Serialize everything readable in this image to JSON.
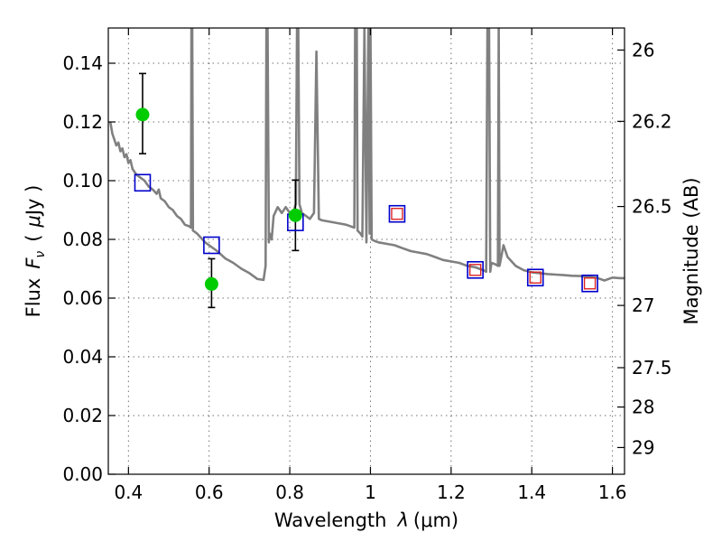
{
  "chart_data": {
    "type": "scatter",
    "xlabel_text": "Wavelength",
    "xlabel_symbol": "λ",
    "xlabel_unit": "(μm)",
    "ylabel_text": "Flux",
    "ylabel_symbol": "F",
    "ylabel_subscript": "ν",
    "ylabel_unit_open": "(",
    "ylabel_unit_mu": "μ",
    "ylabel_unit_rest": "Jy )",
    "y2label": "Magnitude (AB)",
    "xlim": [
      0.35,
      1.63
    ],
    "ylim": [
      0.0,
      0.152
    ],
    "grid": true,
    "x_ticks": [
      0.4,
      0.6,
      0.8,
      1.0,
      1.2,
      1.4,
      1.6
    ],
    "x_tick_labels": [
      "0.4",
      "0.6",
      "0.8",
      "1",
      "1.2",
      "1.4",
      "1.6"
    ],
    "y_ticks": [
      0.0,
      0.02,
      0.04,
      0.06,
      0.08,
      0.1,
      0.12,
      0.14
    ],
    "y_tick_labels": [
      "0.00",
      "0.02",
      "0.04",
      "0.06",
      "0.08",
      "0.10",
      "0.12",
      "0.14"
    ],
    "y2_ticks": [
      {
        "label": "26",
        "flux": 0.1445
      },
      {
        "label": "26.2",
        "flux": 0.1202
      },
      {
        "label": "26.5",
        "flux": 0.0912
      },
      {
        "label": "27",
        "flux": 0.0575
      },
      {
        "label": "27.5",
        "flux": 0.0363
      },
      {
        "label": "28",
        "flux": 0.0229
      },
      {
        "label": "29",
        "flux": 0.0091
      }
    ],
    "series": [
      {
        "kind": "line",
        "color": "#808080",
        "points": [
          [
            0.355,
            0.12
          ],
          [
            0.36,
            0.116
          ],
          [
            0.365,
            0.114
          ],
          [
            0.37,
            0.112
          ],
          [
            0.375,
            0.113
          ],
          [
            0.38,
            0.11
          ],
          [
            0.385,
            0.111
          ],
          [
            0.39,
            0.108
          ],
          [
            0.395,
            0.109
          ],
          [
            0.4,
            0.106
          ],
          [
            0.405,
            0.107
          ],
          [
            0.41,
            0.104
          ],
          [
            0.42,
            0.102
          ],
          [
            0.43,
            0.101
          ],
          [
            0.44,
            0.1
          ],
          [
            0.45,
            0.098
          ],
          [
            0.46,
            0.097
          ],
          [
            0.47,
            0.0955
          ],
          [
            0.475,
            0.097
          ],
          [
            0.48,
            0.094
          ],
          [
            0.49,
            0.093
          ],
          [
            0.5,
            0.091
          ],
          [
            0.51,
            0.09
          ],
          [
            0.52,
            0.088
          ],
          [
            0.53,
            0.087
          ],
          [
            0.54,
            0.085
          ],
          [
            0.55,
            0.0845
          ],
          [
            0.555,
            0.084
          ],
          [
            0.556,
            0.16
          ],
          [
            0.558,
            0.16
          ],
          [
            0.56,
            0.083
          ],
          [
            0.57,
            0.082
          ],
          [
            0.58,
            0.0805
          ],
          [
            0.59,
            0.079
          ],
          [
            0.6,
            0.078
          ],
          [
            0.62,
            0.076
          ],
          [
            0.64,
            0.0735
          ],
          [
            0.66,
            0.072
          ],
          [
            0.68,
            0.07
          ],
          [
            0.7,
            0.0685
          ],
          [
            0.72,
            0.0665
          ],
          [
            0.735,
            0.0662
          ],
          [
            0.74,
            0.071
          ],
          [
            0.742,
            0.16
          ],
          [
            0.745,
            0.16
          ],
          [
            0.748,
            0.079
          ],
          [
            0.75,
            0.082
          ],
          [
            0.755,
            0.08
          ],
          [
            0.76,
            0.088
          ],
          [
            0.77,
            0.091
          ],
          [
            0.78,
            0.089
          ],
          [
            0.79,
            0.091
          ],
          [
            0.8,
            0.089
          ],
          [
            0.81,
            0.09
          ],
          [
            0.815,
            0.092
          ],
          [
            0.818,
            0.16
          ],
          [
            0.821,
            0.16
          ],
          [
            0.824,
            0.092
          ],
          [
            0.83,
            0.089
          ],
          [
            0.84,
            0.088
          ],
          [
            0.85,
            0.087
          ],
          [
            0.86,
            0.089
          ],
          [
            0.866,
            0.144
          ],
          [
            0.872,
            0.087
          ],
          [
            0.88,
            0.0865
          ],
          [
            0.9,
            0.086
          ],
          [
            0.92,
            0.0855
          ],
          [
            0.94,
            0.085
          ],
          [
            0.96,
            0.084
          ],
          [
            0.962,
            0.16
          ],
          [
            0.966,
            0.16
          ],
          [
            0.968,
            0.083
          ],
          [
            0.975,
            0.082
          ],
          [
            0.98,
            0.081
          ],
          [
            0.985,
            0.16
          ],
          [
            0.99,
            0.079
          ],
          [
            0.995,
            0.16
          ],
          [
            0.998,
            0.082
          ],
          [
            1.0,
            0.16
          ],
          [
            1.003,
            0.08
          ],
          [
            1.01,
            0.0795
          ],
          [
            1.02,
            0.079
          ],
          [
            1.04,
            0.0785
          ],
          [
            1.06,
            0.078
          ],
          [
            1.08,
            0.077
          ],
          [
            1.1,
            0.076
          ],
          [
            1.12,
            0.0755
          ],
          [
            1.14,
            0.075
          ],
          [
            1.16,
            0.074
          ],
          [
            1.18,
            0.073
          ],
          [
            1.2,
            0.0725
          ],
          [
            1.22,
            0.072
          ],
          [
            1.24,
            0.071
          ],
          [
            1.26,
            0.0705
          ],
          [
            1.27,
            0.07
          ],
          [
            1.28,
            0.0695
          ],
          [
            1.287,
            0.069
          ],
          [
            1.29,
            0.16
          ],
          [
            1.294,
            0.16
          ],
          [
            1.297,
            0.069
          ],
          [
            1.3,
            0.072
          ],
          [
            1.31,
            0.0715
          ],
          [
            1.316,
            0.071
          ],
          [
            1.318,
            0.16
          ],
          [
            1.32,
            0.071
          ],
          [
            1.33,
            0.078
          ],
          [
            1.34,
            0.074
          ],
          [
            1.36,
            0.071
          ],
          [
            1.38,
            0.0695
          ],
          [
            1.4,
            0.0688
          ],
          [
            1.42,
            0.0685
          ],
          [
            1.44,
            0.0682
          ],
          [
            1.46,
            0.068
          ],
          [
            1.48,
            0.0678
          ],
          [
            1.5,
            0.0676
          ],
          [
            1.52,
            0.0675
          ],
          [
            1.54,
            0.0672
          ],
          [
            1.56,
            0.067
          ],
          [
            1.58,
            0.066
          ],
          [
            1.6,
            0.067
          ],
          [
            1.62,
            0.0668
          ],
          [
            1.63,
            0.0668
          ]
        ]
      },
      {
        "kind": "points_with_errors",
        "color": "#00cc00",
        "marker": "circle",
        "points": [
          {
            "x": 0.435,
            "y": 0.1225,
            "err_low": 0.1092,
            "err_high": 0.1365
          },
          {
            "x": 0.606,
            "y": 0.0648,
            "err_low": 0.0568,
            "err_high": 0.0734
          },
          {
            "x": 0.814,
            "y": 0.0882,
            "err_low": 0.0762,
            "err_high": 0.1002
          }
        ]
      },
      {
        "kind": "model_squares",
        "color": "#0000cc",
        "marker": "square",
        "points": [
          {
            "x": 0.435,
            "y": 0.0993
          },
          {
            "x": 0.606,
            "y": 0.078
          },
          {
            "x": 0.814,
            "y": 0.0858
          },
          {
            "x": 1.066,
            "y": 0.0887
          },
          {
            "x": 1.26,
            "y": 0.0696
          },
          {
            "x": 1.409,
            "y": 0.067
          },
          {
            "x": 1.544,
            "y": 0.065
          }
        ]
      },
      {
        "kind": "inner_squares",
        "color": "#dd2222",
        "marker": "square",
        "points": [
          {
            "x": 1.066,
            "y": 0.0887
          },
          {
            "x": 1.26,
            "y": 0.0696
          },
          {
            "x": 1.409,
            "y": 0.067
          },
          {
            "x": 1.544,
            "y": 0.065
          }
        ]
      }
    ]
  }
}
